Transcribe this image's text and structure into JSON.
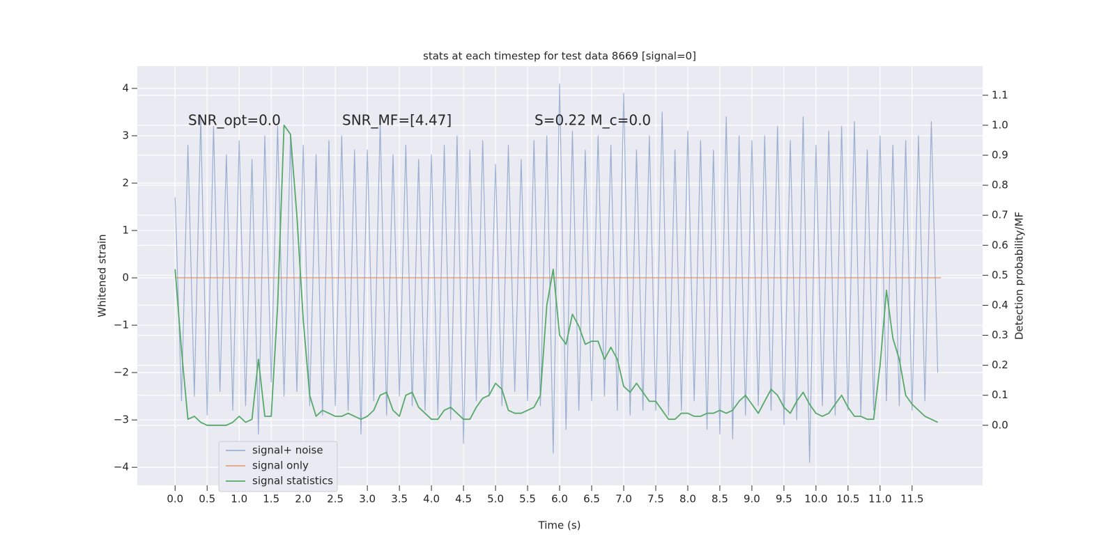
{
  "chart_data": {
    "type": "line",
    "title": "stats at each timestep for test data 8669 [signal=0]",
    "xlabel": "Time (s)",
    "ylabel": "Whitened strain",
    "y2label": "Detection probability/MF",
    "annotations": [
      "SNR_opt=0.0",
      "SNR_MF=[4.47]",
      "S=0.22   M_c=0.0"
    ],
    "grid": true,
    "legend": "lower left",
    "xlim": [
      -0.59,
      12.6
    ],
    "ylim": [
      -4.38,
      4.47
    ],
    "y2lim": [
      -0.2,
      1.197
    ],
    "xticks": [
      {
        "value": 0,
        "label": "0.0"
      },
      0.5,
      {
        "value": 1,
        "label": "1.0"
      },
      1.5,
      {
        "value": 2,
        "label": "2.0"
      },
      2.5,
      {
        "value": 3,
        "label": "3.0"
      },
      3.5,
      {
        "value": 4,
        "label": "4.0"
      },
      4.5,
      {
        "value": 5,
        "label": "5.0"
      },
      5.5,
      {
        "value": 6,
        "label": "6.0"
      },
      6.5,
      {
        "value": 7,
        "label": "7.0"
      },
      7.5,
      {
        "value": 8,
        "label": "8.0"
      },
      8.5,
      {
        "value": 9,
        "label": "9.0"
      },
      9.5,
      {
        "value": 10,
        "label": "10.0"
      },
      10.5,
      {
        "value": 11,
        "label": "11.0"
      },
      11.5
    ],
    "yticks": [
      {
        "value": -4,
        "label": "−4"
      },
      {
        "value": -3,
        "label": "−3"
      },
      {
        "value": -2,
        "label": "−2"
      },
      {
        "value": -1,
        "label": "−1"
      },
      0,
      1,
      2,
      3,
      4
    ],
    "y2ticks": [
      {
        "value": 0,
        "label": "0.0"
      },
      0.1,
      0.2,
      0.3,
      0.4,
      0.5,
      0.6,
      0.7,
      0.8,
      0.9,
      {
        "value": 1,
        "label": "1.0"
      },
      1.1
    ],
    "x": [
      0,
      0.1,
      0.2,
      0.3,
      0.4,
      0.5,
      0.6,
      0.7,
      0.8,
      0.9,
      1,
      1.1,
      1.2,
      1.3,
      1.4,
      1.5,
      1.6,
      1.7,
      1.8,
      1.9,
      2,
      2.1,
      2.2,
      2.3,
      2.4,
      2.5,
      2.6,
      2.7,
      2.8,
      2.9,
      3,
      3.1,
      3.2,
      3.3,
      3.4,
      3.5,
      3.6,
      3.7,
      3.8,
      3.9,
      4,
      4.1,
      4.2,
      4.3,
      4.4,
      4.5,
      4.6,
      4.7,
      4.8,
      4.9,
      5,
      5.1,
      5.2,
      5.3,
      5.4,
      5.5,
      5.6,
      5.7,
      5.8,
      5.9,
      6,
      6.1,
      6.2,
      6.3,
      6.4,
      6.5,
      6.6,
      6.7,
      6.8,
      6.9,
      7,
      7.1,
      7.2,
      7.3,
      7.4,
      7.5,
      7.6,
      7.7,
      7.8,
      7.9,
      8,
      8.1,
      8.2,
      8.3,
      8.4,
      8.5,
      8.6,
      8.7,
      8.8,
      8.9,
      9,
      9.1,
      9.2,
      9.3,
      9.4,
      9.5,
      9.6,
      9.7,
      9.8,
      9.9,
      10,
      10.1,
      10.2,
      10.3,
      10.4,
      10.5,
      10.6,
      10.7,
      10.8,
      10.9,
      11,
      11.1,
      11.2,
      11.3,
      11.4,
      11.5,
      11.6,
      11.7,
      11.8,
      11.9
    ],
    "series": [
      {
        "name": "signal+ noise",
        "color": "#4c72b0",
        "values": [
          1.7,
          -2.6,
          2.8,
          -2.5,
          3.4,
          -2.9,
          3.2,
          -2.4,
          2.6,
          -2.8,
          2.9,
          -2.7,
          2.5,
          -3.3,
          3.0,
          -2.2,
          3.2,
          -2.5,
          3.0,
          -2.4,
          2.8,
          -2.7,
          2.6,
          -2.9,
          2.9,
          -2.7,
          3.0,
          -2.8,
          2.7,
          -3.3,
          2.7,
          -2.6,
          3.3,
          -2.9,
          2.6,
          -2.5,
          2.8,
          -2.7,
          2.5,
          -2.8,
          2.6,
          -2.9,
          2.8,
          -3.0,
          3.0,
          -3.5,
          2.7,
          -2.6,
          2.9,
          -2.5,
          2.4,
          -2.7,
          2.8,
          -2.4,
          2.5,
          -2.6,
          2.9,
          -2.7,
          3.0,
          -3.7,
          4.1,
          -3.2,
          3.1,
          -2.8,
          2.7,
          -2.6,
          3.0,
          -2.5,
          2.8,
          -2.8,
          3.9,
          -2.9,
          2.7,
          -2.8,
          3.0,
          -2.8,
          3.5,
          -2.9,
          2.7,
          -2.8,
          3.1,
          -2.6,
          2.9,
          -3.2,
          2.7,
          -3.3,
          3.4,
          -3.4,
          3.0,
          -2.9,
          2.9,
          -2.7,
          3.0,
          -2.8,
          3.2,
          -3.1,
          2.9,
          -3.0,
          3.4,
          -3.9,
          2.8,
          -2.7,
          3.1,
          -2.9,
          3.2,
          -2.8,
          3.3,
          -2.9,
          2.7,
          -2.8,
          3.0,
          -2.6,
          2.8,
          -2.7,
          2.9,
          -2.8,
          3.0,
          -2.6,
          3.3,
          -2.0
        ]
      },
      {
        "name": "signal only",
        "color": "#dd8452",
        "x": [
          0,
          11.95
        ],
        "values": [
          0,
          0
        ]
      },
      {
        "name": "signal statistics",
        "color": "#55a868",
        "axis": "y2",
        "values": [
          0.52,
          0.25,
          0.02,
          0.03,
          0.01,
          0.0,
          0.0,
          0.0,
          0.0,
          0.01,
          0.03,
          0.01,
          0.02,
          0.22,
          0.03,
          0.03,
          0.4,
          1.0,
          0.97,
          0.7,
          0.35,
          0.1,
          0.03,
          0.05,
          0.04,
          0.03,
          0.03,
          0.04,
          0.03,
          0.02,
          0.03,
          0.05,
          0.1,
          0.11,
          0.05,
          0.03,
          0.1,
          0.11,
          0.06,
          0.04,
          0.02,
          0.02,
          0.05,
          0.06,
          0.04,
          0.02,
          0.02,
          0.06,
          0.09,
          0.1,
          0.14,
          0.12,
          0.05,
          0.04,
          0.04,
          0.05,
          0.06,
          0.1,
          0.4,
          0.52,
          0.3,
          0.27,
          0.37,
          0.33,
          0.27,
          0.28,
          0.28,
          0.22,
          0.26,
          0.22,
          0.13,
          0.11,
          0.14,
          0.11,
          0.08,
          0.08,
          0.05,
          0.02,
          0.02,
          0.04,
          0.04,
          0.03,
          0.03,
          0.04,
          0.04,
          0.05,
          0.04,
          0.05,
          0.08,
          0.1,
          0.07,
          0.04,
          0.08,
          0.12,
          0.1,
          0.06,
          0.04,
          0.08,
          0.11,
          0.07,
          0.04,
          0.03,
          0.04,
          0.07,
          0.1,
          0.06,
          0.03,
          0.03,
          0.02,
          0.02,
          0.2,
          0.45,
          0.29,
          0.22,
          0.1,
          0.07,
          0.05,
          0.03,
          0.02,
          0.01
        ]
      }
    ]
  }
}
